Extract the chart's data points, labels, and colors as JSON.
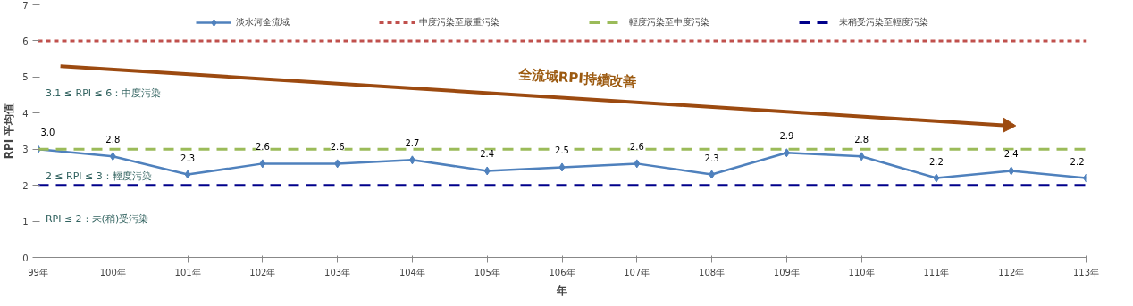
{
  "chart_data": {
    "type": "line",
    "xlabel": "年",
    "ylabel": "RPI 平均值",
    "categories": [
      "99年",
      "100年",
      "101年",
      "102年",
      "103年",
      "104年",
      "105年",
      "106年",
      "107年",
      "108年",
      "109年",
      "110年",
      "111年",
      "112年",
      "113年"
    ],
    "series": [
      {
        "name": "淡水河全流域",
        "color": "#4f81bd",
        "values": [
          3.0,
          2.8,
          2.3,
          2.6,
          2.6,
          2.7,
          2.4,
          2.5,
          2.6,
          2.3,
          2.9,
          2.8,
          2.2,
          2.4,
          2.2
        ]
      }
    ],
    "ref_lines": [
      {
        "axis": "y",
        "value": 6,
        "label": "中度污染至嚴重污染",
        "color": "#c0504d",
        "line_style": "dotted"
      },
      {
        "axis": "y",
        "value": 3,
        "label": "輕度污染至中度污染",
        "color": "#9bbb59",
        "line_style": "dashed"
      },
      {
        "axis": "y",
        "value": 2,
        "label": "未稍受污染至輕度污染",
        "color": "#00008b",
        "line_style": "dashed"
      }
    ],
    "annotations": [
      "全流域RPI持續改善",
      "3.1 ≤ RPI ≤ 6：中度污染",
      "2 ≤ RPI ≤ 3：輕度污染",
      "RPI ≤ 2：未(稍)受污染"
    ],
    "ylim": [
      0,
      7
    ],
    "yticks": [
      0,
      1,
      2,
      3,
      4,
      5,
      6,
      7
    ],
    "value_labels": [
      "3.0",
      "2.8",
      "2.3",
      "2.6",
      "2.6",
      "2.7",
      "2.4",
      "2.5",
      "2.6",
      "2.3",
      "2.9",
      "2.8",
      "2.2",
      "2.4",
      "2.2"
    ],
    "marker": "diamond",
    "line_style": "solid",
    "legend": "top",
    "grid": false
  }
}
